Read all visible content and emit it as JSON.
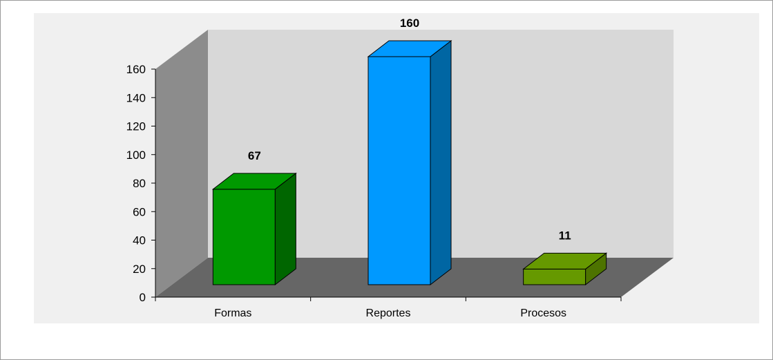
{
  "chart_data": {
    "type": "bar",
    "style": "3d",
    "title": "",
    "xlabel": "",
    "ylabel": "",
    "categories": [
      "Formas",
      "Reportes",
      "Procesos"
    ],
    "values": [
      67,
      160,
      11
    ],
    "data_labels": [
      "67",
      "160",
      "11"
    ],
    "ylim": [
      0,
      160
    ],
    "yticks": [
      "0",
      "20",
      "40",
      "60",
      "80",
      "100",
      "120",
      "140",
      "160"
    ],
    "grid": false,
    "legend": "none",
    "colors": {
      "bars": [
        {
          "front": "#009900",
          "side": "#006600",
          "top": "#009900"
        },
        {
          "front": "#0099ff",
          "side": "#0066a3",
          "top": "#0099ff"
        },
        {
          "front": "#669900",
          "side": "#4d7300",
          "top": "#669900"
        }
      ],
      "plot_area": "#f0f0f0",
      "back_wall": "#d8d8d8",
      "side_wall": "#8c8c8c",
      "floor": "#666666"
    }
  }
}
